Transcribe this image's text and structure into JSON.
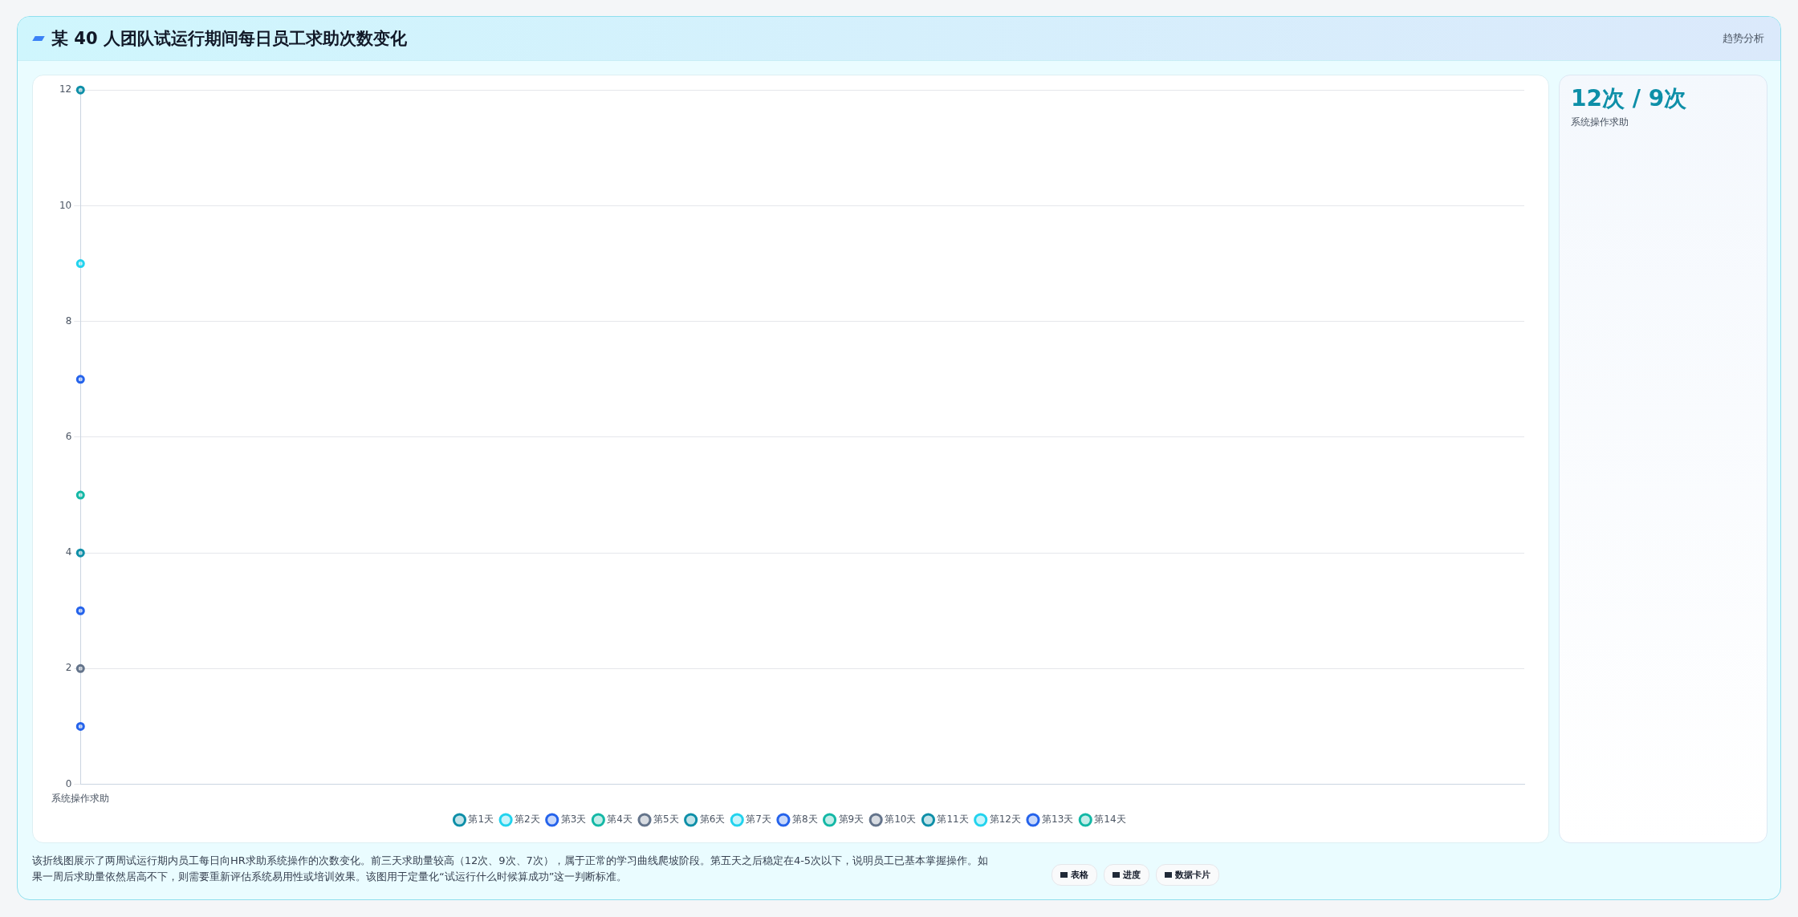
{
  "chart_data": [
    {
      "type": "line",
      "title": "某 40 人团队试运行期间每日员工求助次数变化",
      "categories": [
        "系统操作求助"
      ],
      "series": [
        {
          "name": "第1天",
          "color": "#0e8fa8",
          "values": [
            12
          ]
        },
        {
          "name": "第2天",
          "color": "#22d3ee",
          "values": [
            9
          ]
        },
        {
          "name": "第3天",
          "color": "#2563eb",
          "values": [
            7
          ]
        },
        {
          "name": "第4天",
          "color": "#14b8a6",
          "values": [
            5
          ]
        },
        {
          "name": "第5天",
          "color": "#64748b",
          "values": [
            2
          ]
        },
        {
          "name": "第6天",
          "color": "#0e8fa8",
          "values": [
            4
          ]
        },
        {
          "name": "第7天",
          "color": "#22d3ee",
          "values": [
            null
          ]
        },
        {
          "name": "第8天",
          "color": "#2563eb",
          "values": [
            3
          ]
        },
        {
          "name": "第9天",
          "color": "#14b8a6",
          "values": [
            null
          ]
        },
        {
          "name": "第10天",
          "color": "#64748b",
          "values": [
            null
          ]
        },
        {
          "name": "第11天",
          "color": "#0e8fa8",
          "values": [
            null
          ]
        },
        {
          "name": "第12天",
          "color": "#22d3ee",
          "values": [
            null
          ]
        },
        {
          "name": "第13天",
          "color": "#2563eb",
          "values": [
            1
          ]
        },
        {
          "name": "第14天",
          "color": "#14b8a6",
          "values": [
            null
          ]
        }
      ],
      "ylim": [
        0,
        12
      ],
      "yticks": [
        0,
        2,
        4,
        6,
        8,
        10,
        12
      ],
      "grid": "y",
      "legend": "bottom",
      "marker": "circle",
      "annotations": [
        "趋势分析",
        "该折线图展示了两周试运行期内员工每日向HR求助系统操作的次数变化。前三天求助量较高（12次、9次、7次），属于正常的学习曲线爬坡阶段。第五天之后稳定在4-5次以下，说明员工已基本掌握操作。如果一周后求助量依然居高不下，则需要重新评估系统易用性或培训效果。该图用于定量化“试运行什么时候算成功”这一判断标准。",
        "表格",
        "进度",
        "数据卡片"
      ]
    },
    {
      "type": "other",
      "title": "12次 / 9次",
      "subtitle": "系统操作求助"
    }
  ]
}
